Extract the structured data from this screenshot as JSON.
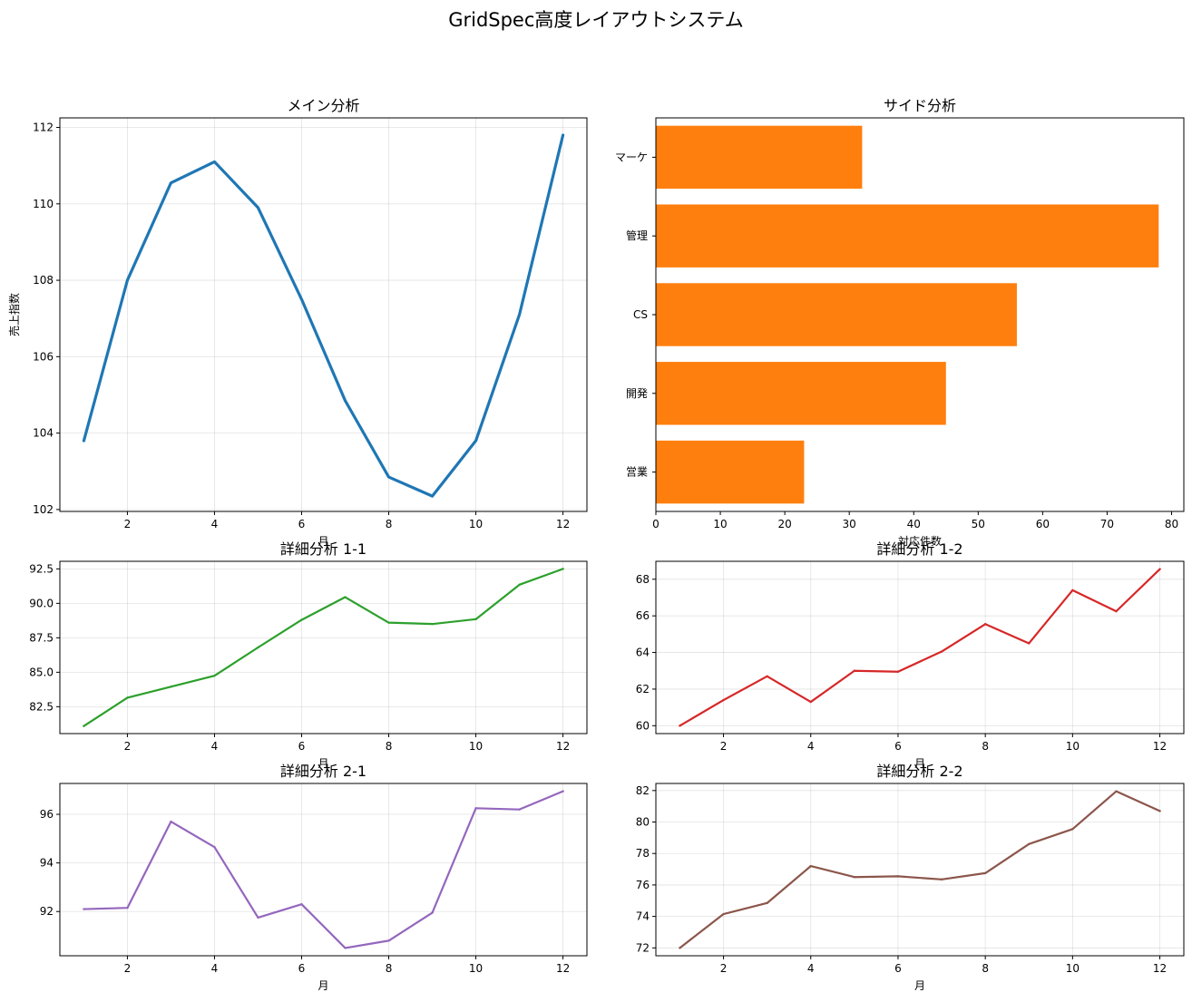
{
  "figure": {
    "title": "GridSpec高度レイアウトシステム"
  },
  "chart_data": [
    {
      "id": "main",
      "type": "line",
      "title": "メイン分析",
      "xlabel": "月",
      "ylabel": "売上指数",
      "x": [
        1,
        2,
        3,
        4,
        5,
        6,
        7,
        8,
        9,
        10,
        11,
        12
      ],
      "series": [
        {
          "values": [
            103.8,
            108.0,
            110.55,
            111.1,
            109.9,
            107.5,
            104.85,
            102.85,
            102.35,
            103.8,
            107.1,
            111.8
          ]
        }
      ],
      "color": "#1f77b4",
      "xlim": [
        0.45,
        12.55
      ],
      "ylim": [
        101.95,
        112.25
      ],
      "xticks": [
        2,
        4,
        6,
        8,
        10,
        12
      ],
      "yticks": [
        102,
        104,
        106,
        108,
        110,
        112
      ],
      "grid": true
    },
    {
      "id": "side",
      "type": "bar",
      "orientation": "horizontal",
      "title": "サイド分析",
      "xlabel": "対応件数",
      "ylabel": "",
      "categories": [
        "営業",
        "開発",
        "CS",
        "管理",
        "マーケ"
      ],
      "values": [
        23,
        45,
        56,
        78,
        32
      ],
      "color": "#ff7f0e",
      "xlim": [
        0,
        81.9
      ],
      "xticks": [
        0,
        10,
        20,
        30,
        40,
        50,
        60,
        70,
        80
      ],
      "grid": false
    },
    {
      "id": "detail-1-1",
      "type": "line",
      "title": "詳細分析 1-1",
      "xlabel": "月",
      "ylabel": "",
      "x": [
        1,
        2,
        3,
        4,
        5,
        6,
        7,
        8,
        9,
        10,
        11,
        12
      ],
      "series": [
        {
          "values": [
            81.1,
            83.15,
            83.95,
            84.75,
            86.8,
            88.8,
            90.45,
            88.6,
            88.5,
            88.85,
            91.35,
            92.5
          ]
        }
      ],
      "color": "#2ca02c",
      "xlim": [
        0.45,
        12.55
      ],
      "ylim": [
        80.55,
        93.05
      ],
      "xticks": [
        2,
        4,
        6,
        8,
        10,
        12
      ],
      "yticks": [
        82.5,
        85.0,
        87.5,
        90.0,
        92.5
      ],
      "ytick_labels": [
        "82.5",
        "85.0",
        "87.5",
        "90.0",
        "92.5"
      ],
      "grid": true
    },
    {
      "id": "detail-1-2",
      "type": "line",
      "title": "詳細分析 1-2",
      "xlabel": "月",
      "ylabel": "",
      "x": [
        1,
        2,
        3,
        4,
        5,
        6,
        7,
        8,
        9,
        10,
        11,
        12
      ],
      "series": [
        {
          "values": [
            60.0,
            61.4,
            62.7,
            61.3,
            63.0,
            62.95,
            64.05,
            65.55,
            64.5,
            67.4,
            66.25,
            68.55
          ]
        }
      ],
      "color": "#d62728",
      "xlim": [
        0.45,
        12.55
      ],
      "ylim": [
        59.57,
        68.98
      ],
      "xticks": [
        2,
        4,
        6,
        8,
        10,
        12
      ],
      "yticks": [
        60,
        62,
        64,
        66,
        68
      ],
      "grid": true
    },
    {
      "id": "detail-2-1",
      "type": "line",
      "title": "詳細分析 2-1",
      "xlabel": "月",
      "ylabel": "",
      "x": [
        1,
        2,
        3,
        4,
        5,
        6,
        7,
        8,
        9,
        10,
        11,
        12
      ],
      "series": [
        {
          "values": [
            92.1,
            92.15,
            95.7,
            94.65,
            91.75,
            92.3,
            90.5,
            90.8,
            91.95,
            96.25,
            96.2,
            96.95
          ]
        }
      ],
      "color": "#9467bd",
      "xlim": [
        0.45,
        12.55
      ],
      "ylim": [
        90.18,
        97.27
      ],
      "xticks": [
        2,
        4,
        6,
        8,
        10,
        12
      ],
      "yticks": [
        92,
        94,
        96
      ],
      "grid": true
    },
    {
      "id": "detail-2-2",
      "type": "line",
      "title": "詳細分析 2-2",
      "xlabel": "月",
      "ylabel": "",
      "x": [
        1,
        2,
        3,
        4,
        5,
        6,
        7,
        8,
        9,
        10,
        11,
        12
      ],
      "series": [
        {
          "values": [
            72.0,
            74.15,
            74.85,
            77.2,
            76.5,
            76.55,
            76.35,
            76.75,
            78.6,
            79.55,
            81.95,
            80.7
          ]
        }
      ],
      "color": "#8c564b",
      "xlim": [
        0.45,
        12.55
      ],
      "ylim": [
        71.5,
        82.45
      ],
      "xticks": [
        2,
        4,
        6,
        8,
        10,
        12
      ],
      "yticks": [
        72,
        74,
        76,
        78,
        80,
        82
      ],
      "grid": true
    }
  ]
}
